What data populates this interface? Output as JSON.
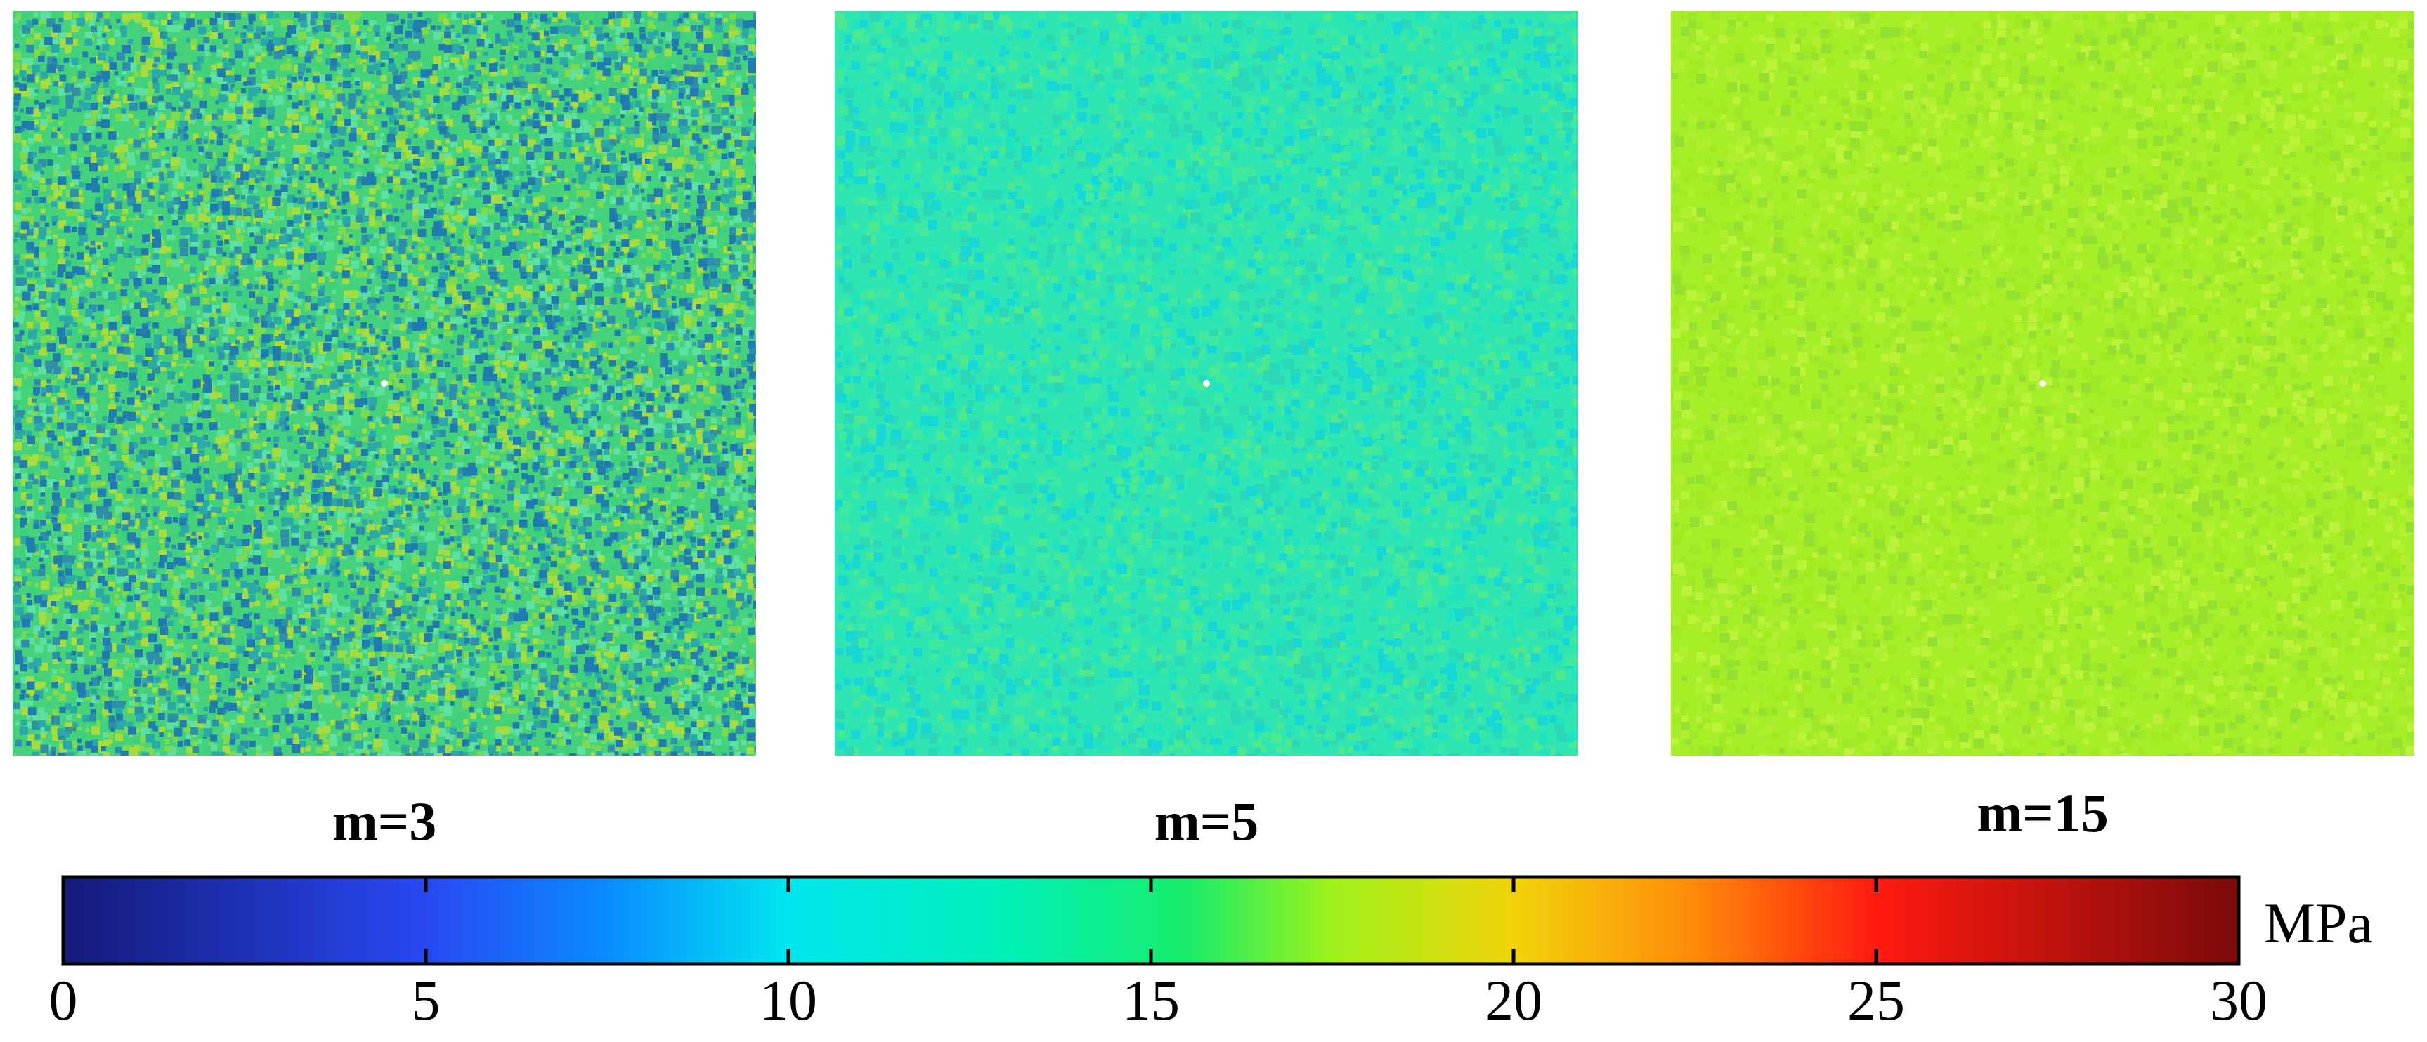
{
  "panels": [
    {
      "label": "m=3",
      "base_color": "#46d27a",
      "palette": [
        "#2ba9a8",
        "#3fd07c",
        "#7fd94d",
        "#a6dc3d",
        "#2f8ea9",
        "#5ee0a0",
        "#1f7bb0"
      ]
    },
    {
      "label": "m=5",
      "base_color": "#2fe6b3",
      "palette": [
        "#20e3c0",
        "#3ee99f",
        "#16d6d6",
        "#4ee88f",
        "#2ad8b8"
      ]
    },
    {
      "label": "m=15",
      "base_color": "#a6ee28",
      "palette": [
        "#9ee82a",
        "#b0f030",
        "#a2ea20",
        "#bdf23a",
        "#93e030"
      ]
    }
  ],
  "colorbar": {
    "unit": "MPa",
    "min": 0,
    "max": 30,
    "ticks": [
      "0",
      "5",
      "10",
      "15",
      "20",
      "25",
      "30"
    ],
    "stops": [
      {
        "value": 0,
        "color": "#141a78"
      },
      {
        "value": 5,
        "color": "#2848f2"
      },
      {
        "value": 7.5,
        "color": "#0a8cff"
      },
      {
        "value": 10,
        "color": "#00e6ee"
      },
      {
        "value": 13,
        "color": "#00f0b8"
      },
      {
        "value": 15.5,
        "color": "#18ec6a"
      },
      {
        "value": 17.5,
        "color": "#9ef21a"
      },
      {
        "value": 20,
        "color": "#f2d30a"
      },
      {
        "value": 22.5,
        "color": "#ff8a0a"
      },
      {
        "value": 25,
        "color": "#ff1a10"
      },
      {
        "value": 30,
        "color": "#7a0a0a"
      }
    ]
  }
}
